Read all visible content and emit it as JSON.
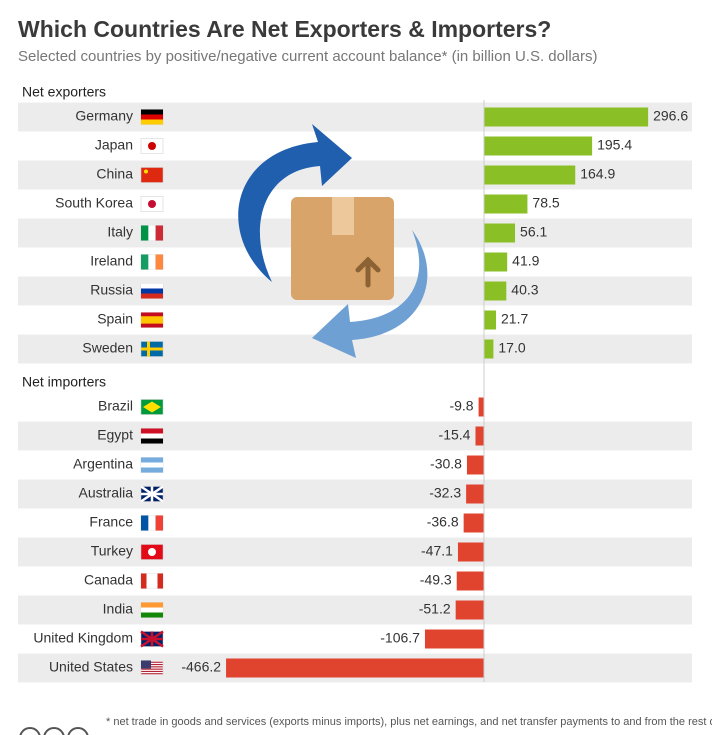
{
  "chart_data": {
    "type": "bar",
    "orientation": "horizontal",
    "title": "Which Countries Are Net Exporters & Importers?",
    "subtitle": "Selected countries by positive/negative current account balance* (in billion U.S. dollars)",
    "footnote": "* net trade in goods and services (exports minus imports), plus net earnings, and net transfer payments to and from the rest of the world",
    "xlim": [
      -470,
      300
    ],
    "series": [
      {
        "name": "Net exporters",
        "color": "#8abf26",
        "categories": [
          "Germany",
          "Japan",
          "China",
          "South Korea",
          "Italy",
          "Ireland",
          "Russia",
          "Spain",
          "Sweden"
        ],
        "values": [
          296.6,
          195.4,
          164.9,
          78.5,
          56.1,
          41.9,
          40.3,
          21.7,
          17.0
        ],
        "value_labels": [
          "296.6",
          "195.4",
          "164.9",
          "78.5",
          "56.1",
          "41.9",
          "40.3",
          "21.7",
          "17.0"
        ]
      },
      {
        "name": "Net importers",
        "color": "#e0442f",
        "categories": [
          "Brazil",
          "Egypt",
          "Argentina",
          "Australia",
          "France",
          "Turkey",
          "Canada",
          "India",
          "United Kingdom",
          "United States"
        ],
        "values": [
          -9.8,
          -15.4,
          -30.8,
          -32.3,
          -36.8,
          -47.1,
          -49.3,
          -51.2,
          -106.7,
          -466.2
        ],
        "value_labels": [
          "-9.8",
          "-15.4",
          "-30.8",
          "-32.3",
          "-36.8",
          "-47.1",
          "-49.3",
          "-51.2",
          "-106.7",
          "-466.2"
        ]
      }
    ]
  }
}
